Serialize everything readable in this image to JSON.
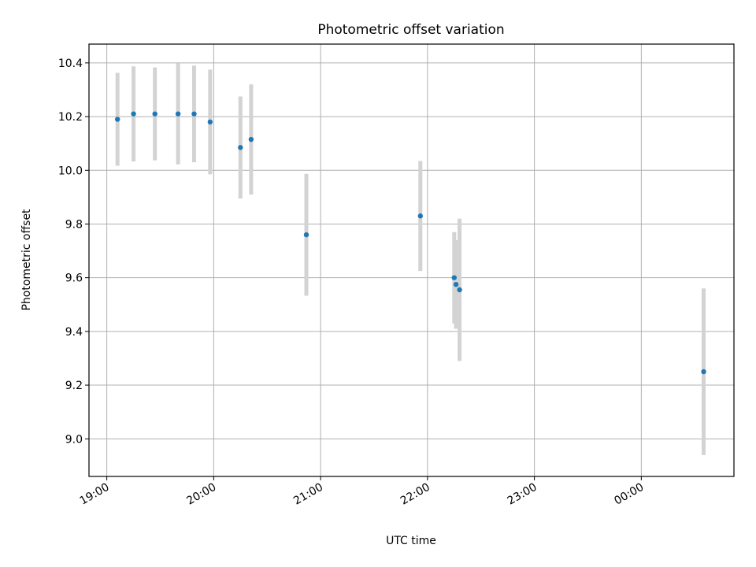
{
  "chart_data": {
    "type": "scatter",
    "title": "Photometric offset variation",
    "xlabel": "UTC time",
    "ylabel": "Photometric offset",
    "grid": true,
    "x_ticks": [
      {
        "time": "19:00",
        "label": "19:00"
      },
      {
        "time": "20:00",
        "label": "20:00"
      },
      {
        "time": "21:00",
        "label": "21:00"
      },
      {
        "time": "22:00",
        "label": "22:00"
      },
      {
        "time": "23:00",
        "label": "23:00"
      },
      {
        "time": "00:00",
        "label": "00:00"
      }
    ],
    "y_ticks": [
      {
        "value": 9.0,
        "label": "9.0"
      },
      {
        "value": 9.2,
        "label": "9.2"
      },
      {
        "value": 9.4,
        "label": "9.4"
      },
      {
        "value": 9.6,
        "label": "9.6"
      },
      {
        "value": 9.8,
        "label": "9.8"
      },
      {
        "value": 10.0,
        "label": "10.0"
      },
      {
        "value": 10.2,
        "label": "10.2"
      },
      {
        "value": 10.4,
        "label": "10.4"
      }
    ],
    "xlim": [
      "18:50",
      "00:52"
    ],
    "ylim": [
      8.86,
      10.47
    ],
    "marker_color": "#1f77b4",
    "errorbar_color": "#d3d3d3",
    "points": [
      {
        "time": "19:06",
        "y": 10.19,
        "err": 0.173
      },
      {
        "time": "19:15",
        "y": 10.21,
        "err": 0.177
      },
      {
        "time": "19:27",
        "y": 10.21,
        "err": 0.173
      },
      {
        "time": "19:40",
        "y": 10.21,
        "err": 0.188
      },
      {
        "time": "19:49",
        "y": 10.21,
        "err": 0.18
      },
      {
        "time": "19:58",
        "y": 10.18,
        "err": 0.195
      },
      {
        "time": "20:15",
        "y": 10.085,
        "err": 0.19
      },
      {
        "time": "20:21",
        "y": 10.115,
        "err": 0.205
      },
      {
        "time": "20:52",
        "y": 9.76,
        "err": 0.227
      },
      {
        "time": "21:56",
        "y": 9.83,
        "err": 0.205
      },
      {
        "time": "22:15",
        "y": 9.6,
        "err": 0.17
      },
      {
        "time": "22:16",
        "y": 9.575,
        "err": 0.165
      },
      {
        "time": "22:18",
        "y": 9.555,
        "err": 0.265
      },
      {
        "time": "00:35",
        "y": 9.25,
        "err": 0.31
      }
    ]
  }
}
